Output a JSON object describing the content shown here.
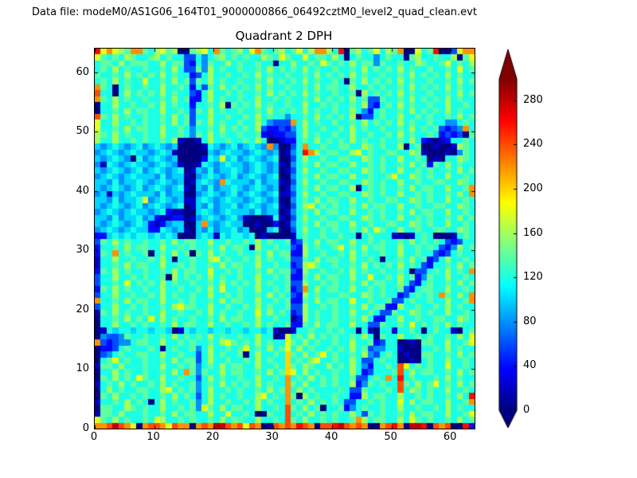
{
  "header": {
    "data_file_label": "Data file: modeM0/AS1G06_164T01_9000000866_06492cztM0_level2_quad_clean.evt"
  },
  "chart_data": {
    "type": "heatmap",
    "title": "Quadrant 2 DPH",
    "x_ticks": [
      0,
      10,
      20,
      30,
      40,
      50,
      60
    ],
    "y_ticks": [
      0,
      10,
      20,
      30,
      40,
      50,
      60
    ],
    "x_range": [
      0,
      64
    ],
    "y_range": [
      0,
      64
    ],
    "colormap": "jet",
    "vmin": 0,
    "vmax": 300,
    "colorbar": {
      "ticks": [
        0,
        40,
        80,
        120,
        160,
        200,
        240,
        280
      ],
      "extend": "both",
      "min_color": "#000080",
      "max_color": "#800000"
    },
    "grid": {
      "encoding": "each char is hex digit c; cell value = parseInt(c,16)*20 counts; rows listed top (y=63) to bottom (y=0), 64 chars per row (x=0..63)",
      "rows_top_to_bottom": [
        "d9b987bb768978007896b767869b767867968bb86d078679687b00967d0039bb",
        "9767687667867663364678676766876976696776860676646766078667668079",
        "6776867776686773264766867667660668667697676867747667668766796768",
        "6768676676676863374867667667686767686766766768676768676676676967",
        "7667686767686766236866766768676676676867676867667667686767686766",
        "6768676696676867376867667667686767686766760768676768676676676867",
        "b760676676686676263768676768676676676867766866767667686767686766",
        "c660686767686766326866767667686767686766766708676768676676676867",
        "b768676676676867226867667668667676676867676867337667686767686766",
        "0668667667686766266768076768676676686676766768326768676676686676",
        "0667686776686676376867667667686767686766766864267667686767686766",
        "c768676676676867366866766768676646676867676803367668667676676867",
        "966866767667686737686766766864333b6867667667686767686766 76644676",
        "9667686776686676466768676768322324686676676867667667686767 3234b6",
        "8768676676686676476867667667212233686766766866766768676676232307",
        "8668667676676810016866766768600122676867676867667667686210126676",
        "5456545645654500001654564565 4b40036b66766776687676680670 01001876",
        "45654565545651000005456554565450146db8677668967667766871 00010476",
        "5456540645654500002659564565456003686676677668767668667601066876",
        "4165456554565410016545655456545104676867766866767667686727686766",
        "5456545645654560154645565456545013686676677668767668667676676867",
        "4565456555464551045654564565456004676867766866766796687676686676",
        "5546455654565450156 54b655546455103686676677668767668667667766876",
        "5456545645654561054645565456545014676867766806767667686776 68667b",
        "45154565554645500456545645654561136866766776687676686676 7667686b",
        "5546455694565451156545655456545004676867766866766776687676686676",
        "5456545645654560154645564565456103689676766768677668667667766876",
        "4565456554562110056545655546455014676867766866767667686776686676",
        "5546455645211220145654564100016103686676677668767668667676676867",
        "5456545652124550 05b5456550010020146768677668667667766876 76686676",
        "4565456552265451054645564500056003686676766768697668667667766876",
        "2256565665656500056516566560100001676676676606766611016760001676",
        "3768676676676867766866766768676672376867766866767667686767632366",
        "2667686776686676766768677608667663286766796768677668667676324867",
        "276b67667067686707686766766768677228667667686766766866766 3236766",
        "1668667667686066766896766768676673376867766866760667686723686676",
        "1667686776686676766768677668667662389766766768676768676326676867",
        "27686766766768677669667676676867732866766768676676676033 6768676b",
        "3668667676670867676867667668667672276867766866966768672476686676",
        "3667696767686766766768676768676673386676766768677668632676676867",
        "2768676676686676676869667668667672 3b68677668667676673267 76686676",
        "36686676676867667668667676676867632867666776687676623676 76b7686b",
        "b6676867766866767667686776686676722768677669667667336766 7668667b",
        "3668667676676897766866766768676673386676766768677228667667686766",
        "1768676676686676676867667669686762386766766866763376687676686676",
        "0667686769686766766768677668667660286766766768622668667667766876",
        "0668667676676867766866766768676672276867766866337667696767686766",
        "0165665665665016566566566566561001667667676606106616676067661067",
        "0433476676676867676867667668660196768676766768607668667676676869",
        "b323446776686676766768976768676697686766766866723660010776686679",
        "0223676667606766746866767967686796867667676867344661000667686766",
        "034676677668667663686766706866 76a76867967667684367601007 76676867",
        "0679676676676867736866766768676 6a67689667668633676600106 76686676",
        "177686 66766866767467686776686676a76876686768642 6676c967676696676",
        "066867667667686b747668677667686 7a96867667668623 6667c686776676867",
        "0768676976686676636867667668667 6b676867676673367 6b6d676667686766",
        "1676867667686766746768676768676 6b76866767668247676 6c768679676867",
        "0686766776689676746866767667686 7b6867666676337666 76c687676686676",
        "0768667676676867636867667668967 6b70867667662286776686676 7667686d",
        "16676867606867667468667667686766b676867676336676766968677668667b",
        "077668767668667674976867766866 76c7686706672467667668667667686766",
        "177686 66766768677668669667600766c6768676766863767667686776686679",
        "9768676676986676766768677668667 6c76866767667b86776686976 76676867",
        "bbcecb90bccb9cbb0bcbeecbc9cb00cbcbdcb0ccdecbcb00bcdb0eed0cbc00d2"
      ]
    }
  }
}
